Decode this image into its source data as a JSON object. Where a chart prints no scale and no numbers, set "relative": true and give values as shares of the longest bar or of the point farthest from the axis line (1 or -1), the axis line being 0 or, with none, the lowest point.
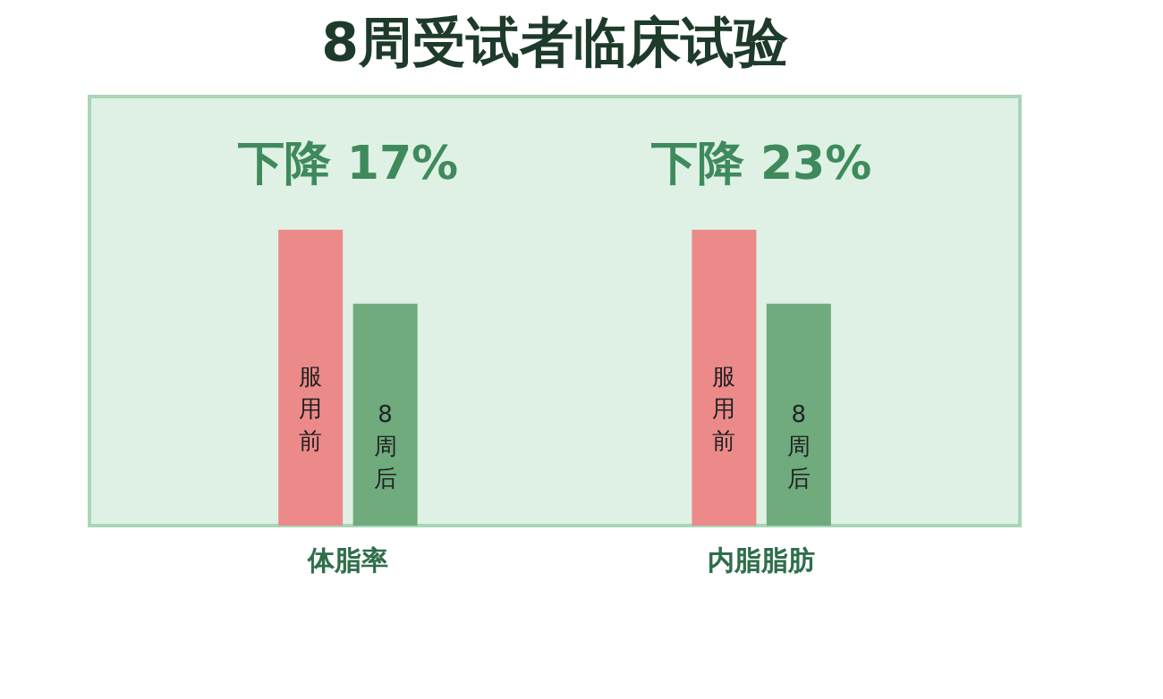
{
  "chart_data": {
    "type": "bar",
    "title": "8周受试者临床试验",
    "relative": true,
    "categories": [
      "体脂率",
      "内脂脂肪"
    ],
    "series": [
      {
        "name": "服用前",
        "color": "#ec8a8a",
        "values": [
          1,
          1
        ]
      },
      {
        "name": "8周后",
        "color": "#6fab7d",
        "values": [
          0.75,
          0.75
        ]
      }
    ],
    "annotations": [
      "下降 17%",
      "下降 23%"
    ],
    "legend": false
  }
}
